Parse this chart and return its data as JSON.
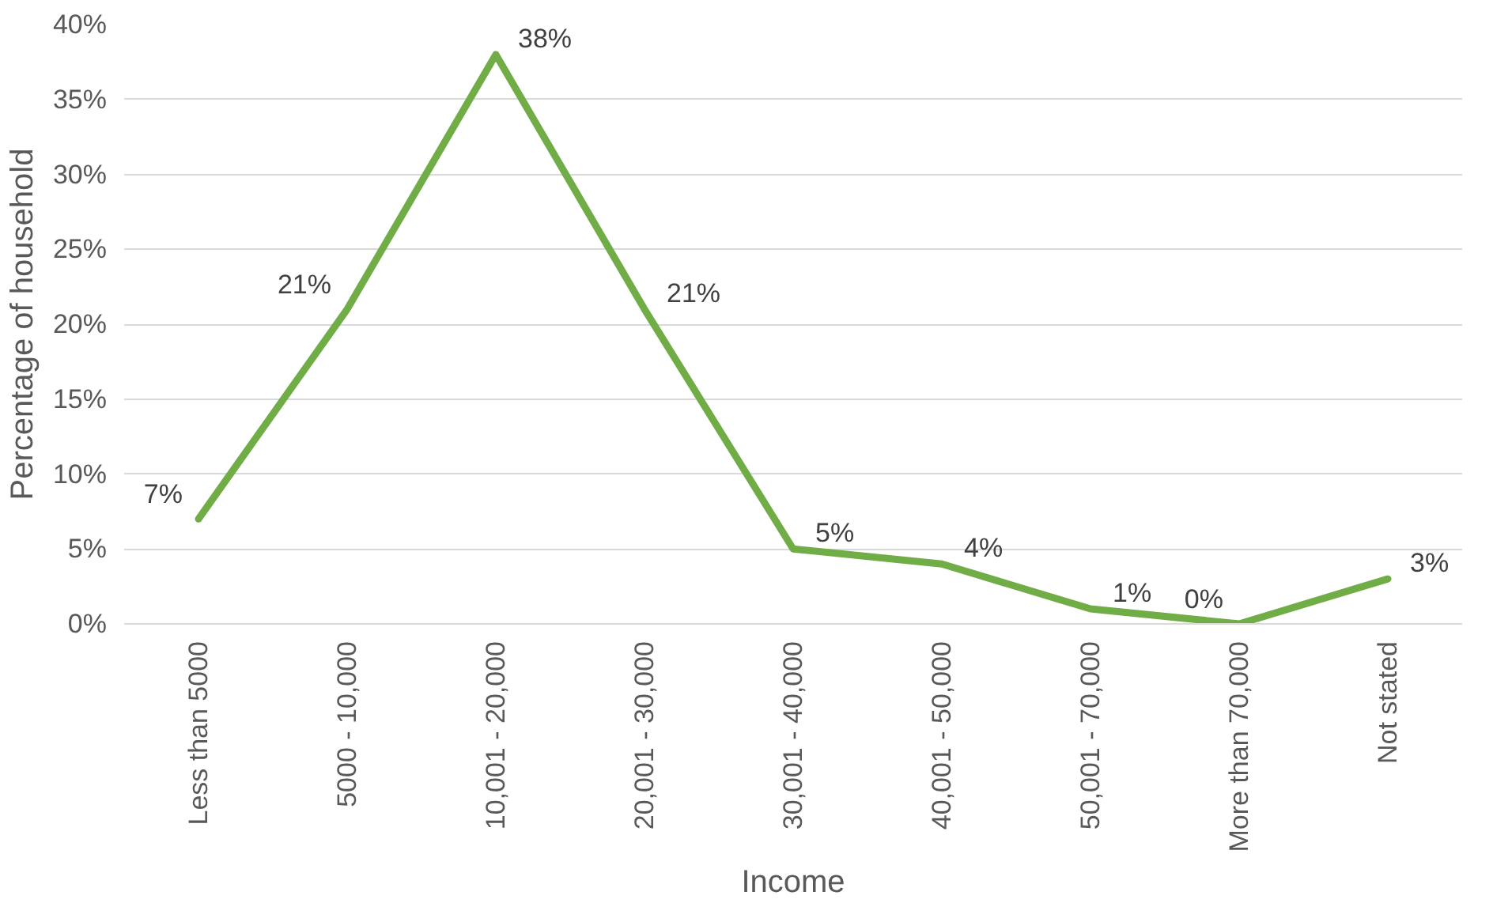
{
  "chart_data": {
    "type": "line",
    "xlabel": "Income",
    "ylabel": "Percentage of household",
    "categories": [
      "Less than 5000",
      "5000 - 10,000",
      "10,001 - 20,000",
      "20,001 - 30,000",
      "30,001 - 40,000",
      "40,001 - 50,000",
      "50,001 - 70,000",
      "More than 70,000",
      "Not stated"
    ],
    "series": [
      {
        "color": "#70ad47",
        "values": [
          7,
          21,
          38,
          21,
          5,
          4,
          1,
          0,
          3
        ],
        "value_labels": [
          "7%",
          "21%",
          "38%",
          "21%",
          "5%",
          "4%",
          "1%",
          "0%",
          "3%"
        ]
      }
    ],
    "ylim": [
      0,
      40
    ],
    "yticks": [
      {
        "value": 0,
        "label": "0%"
      },
      {
        "value": 5,
        "label": "5%"
      },
      {
        "value": 10,
        "label": "10%"
      },
      {
        "value": 15,
        "label": "15%"
      },
      {
        "value": 20,
        "label": "20%"
      },
      {
        "value": 25,
        "label": "25%"
      },
      {
        "value": 30,
        "label": "30%"
      },
      {
        "value": 35,
        "label": "35%"
      },
      {
        "value": 40,
        "label": "40%"
      }
    ],
    "grid": "y",
    "marker": "none",
    "line_style": "solid"
  }
}
